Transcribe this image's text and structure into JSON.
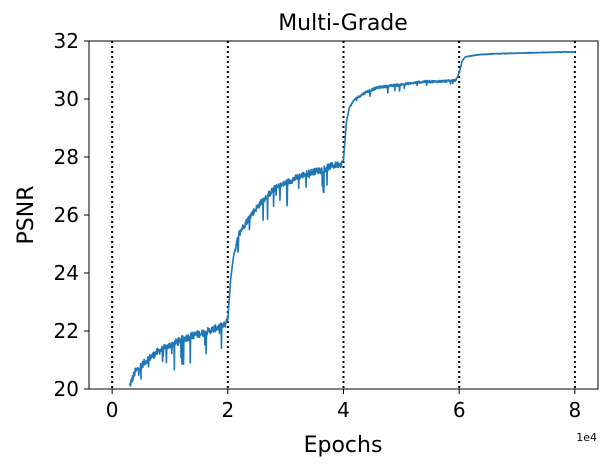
{
  "chart_data": {
    "type": "line",
    "title": "Multi-Grade",
    "xlabel": "Epochs",
    "ylabel": "PSNR",
    "x_offset_label": "1e4",
    "xlim": [
      -0.4,
      8.4
    ],
    "ylim": [
      20,
      32
    ],
    "x_ticks": [
      0,
      2,
      4,
      6,
      8
    ],
    "x_tick_labels": [
      "0",
      "2",
      "4",
      "6",
      "8"
    ],
    "y_ticks": [
      20,
      22,
      24,
      26,
      28,
      30,
      32
    ],
    "y_tick_labels": [
      "20",
      "22",
      "24",
      "26",
      "28",
      "30",
      "32"
    ],
    "grade_boundaries": [
      0,
      2,
      4,
      6,
      8
    ],
    "grid": false,
    "series": [
      {
        "color": "#1f77b4",
        "x": [
          0.3,
          0.4,
          0.6,
          0.8,
          1.0,
          1.2,
          1.4,
          1.6,
          1.8,
          1.95,
          2.0,
          2.05,
          2.1,
          2.2,
          2.4,
          2.6,
          2.8,
          3.0,
          3.2,
          3.4,
          3.6,
          3.8,
          3.95,
          4.0,
          4.05,
          4.1,
          4.2,
          4.4,
          4.6,
          4.8,
          5.0,
          5.2,
          5.4,
          5.6,
          5.8,
          5.95,
          6.0,
          6.05,
          6.1,
          6.3,
          6.6,
          7.0,
          7.4,
          7.8,
          8.0
        ],
        "y": [
          20.1,
          20.6,
          21.0,
          21.3,
          21.5,
          21.7,
          21.85,
          21.95,
          22.1,
          22.2,
          22.4,
          23.8,
          24.6,
          25.4,
          26.0,
          26.5,
          26.9,
          27.1,
          27.3,
          27.45,
          27.55,
          27.7,
          27.75,
          27.9,
          29.2,
          29.7,
          30.0,
          30.25,
          30.4,
          30.45,
          30.5,
          30.55,
          30.6,
          30.6,
          30.62,
          30.65,
          30.9,
          31.3,
          31.45,
          31.52,
          31.56,
          31.58,
          31.6,
          31.62,
          31.62
        ]
      }
    ]
  }
}
